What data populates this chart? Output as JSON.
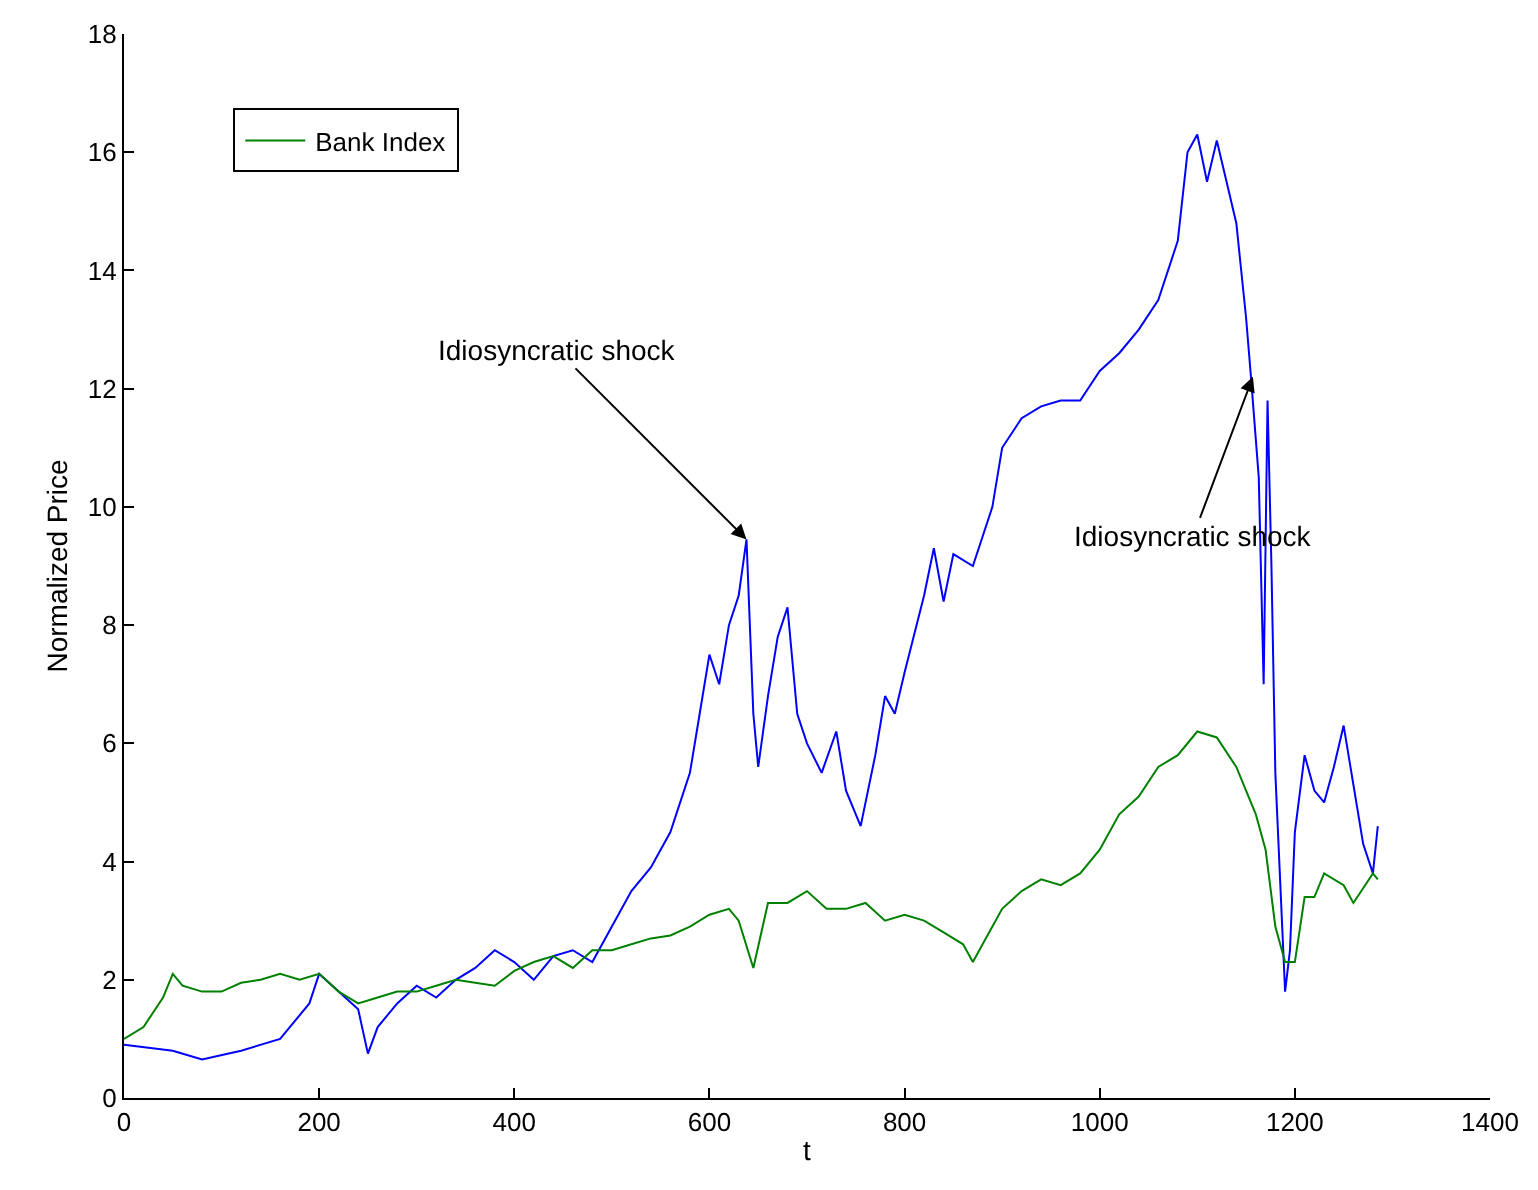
{
  "chart_data": {
    "type": "line",
    "xlabel": "t",
    "ylabel": "Normalized Price",
    "xlim": [
      0,
      1400
    ],
    "xticks": [
      0,
      200,
      400,
      600,
      800,
      1000,
      1200,
      1400
    ],
    "ylim": [
      0,
      18
    ],
    "yticks": [
      0,
      2,
      4,
      6,
      8,
      10,
      12,
      14,
      16,
      18
    ],
    "legend": "top left",
    "marker": "none",
    "line_style": "solid",
    "series": [
      {
        "color": "#0000ff",
        "x": [
          0,
          50,
          80,
          120,
          160,
          190,
          200,
          220,
          240,
          250,
          260,
          280,
          300,
          320,
          340,
          360,
          380,
          400,
          420,
          440,
          460,
          480,
          500,
          520,
          540,
          560,
          580,
          590,
          600,
          610,
          620,
          630,
          638,
          645,
          650,
          660,
          670,
          680,
          690,
          700,
          715,
          730,
          740,
          755,
          770,
          780,
          790,
          800,
          820,
          830,
          840,
          850,
          870,
          890,
          900,
          920,
          940,
          960,
          980,
          1000,
          1020,
          1040,
          1060,
          1080,
          1090,
          1100,
          1110,
          1120,
          1130,
          1140,
          1150,
          1155,
          1163,
          1168,
          1172,
          1176,
          1180,
          1190,
          1195,
          1200,
          1210,
          1220,
          1230,
          1240,
          1250,
          1260,
          1270,
          1280,
          1285
        ],
        "values": [
          0.9,
          0.8,
          0.65,
          0.8,
          1.0,
          1.6,
          2.1,
          1.8,
          1.5,
          0.75,
          1.2,
          1.6,
          1.9,
          1.7,
          2.0,
          2.2,
          2.5,
          2.3,
          2.0,
          2.4,
          2.5,
          2.3,
          2.9,
          3.5,
          3.9,
          4.5,
          5.5,
          6.5,
          7.5,
          7.0,
          8.0,
          8.5,
          9.45,
          6.5,
          5.6,
          6.8,
          7.8,
          8.3,
          6.5,
          6.0,
          5.5,
          6.2,
          5.2,
          4.6,
          5.8,
          6.8,
          6.5,
          7.2,
          8.5,
          9.3,
          8.4,
          9.2,
          9.0,
          10.0,
          11.0,
          11.5,
          11.7,
          11.8,
          11.8,
          12.3,
          12.6,
          13.0,
          13.5,
          14.5,
          16.0,
          16.3,
          15.5,
          16.2,
          15.5,
          14.8,
          13.2,
          12.2,
          10.5,
          7.0,
          11.8,
          9.0,
          5.5,
          1.8,
          2.5,
          4.5,
          5.8,
          5.2,
          5.0,
          5.6,
          6.3,
          5.3,
          4.3,
          3.8,
          4.6
        ]
      },
      {
        "name": "Bank Index",
        "color": "#008000",
        "x": [
          0,
          20,
          40,
          50,
          60,
          80,
          100,
          120,
          140,
          160,
          180,
          200,
          220,
          240,
          260,
          280,
          300,
          320,
          340,
          360,
          380,
          400,
          420,
          440,
          460,
          480,
          500,
          520,
          540,
          560,
          580,
          600,
          620,
          630,
          645,
          660,
          680,
          700,
          720,
          740,
          760,
          780,
          800,
          820,
          840,
          860,
          870,
          880,
          900,
          920,
          940,
          960,
          980,
          1000,
          1020,
          1040,
          1060,
          1080,
          1100,
          1120,
          1140,
          1160,
          1170,
          1180,
          1190,
          1200,
          1210,
          1220,
          1230,
          1250,
          1260,
          1280,
          1285
        ],
        "values": [
          1.0,
          1.2,
          1.7,
          2.1,
          1.9,
          1.8,
          1.8,
          1.95,
          2.0,
          2.1,
          2.0,
          2.1,
          1.8,
          1.6,
          1.7,
          1.8,
          1.8,
          1.9,
          2.0,
          1.95,
          1.9,
          2.15,
          2.3,
          2.4,
          2.2,
          2.5,
          2.5,
          2.6,
          2.7,
          2.75,
          2.9,
          3.1,
          3.2,
          3.0,
          2.2,
          3.3,
          3.3,
          3.5,
          3.2,
          3.2,
          3.3,
          3.0,
          3.1,
          3.0,
          2.8,
          2.6,
          2.3,
          2.6,
          3.2,
          3.5,
          3.7,
          3.6,
          3.8,
          4.2,
          4.8,
          5.1,
          5.6,
          5.8,
          6.2,
          6.1,
          5.6,
          4.8,
          4.2,
          2.9,
          2.3,
          2.3,
          3.4,
          3.4,
          3.8,
          3.6,
          3.3,
          3.8,
          3.7
        ]
      }
    ],
    "annotations": [
      {
        "text": "Idiosyncratic shock",
        "x": 638,
        "y": 9.45
      },
      {
        "text": "Idiosyncratic shock",
        "x": 1157,
        "y": 12.2
      }
    ]
  }
}
